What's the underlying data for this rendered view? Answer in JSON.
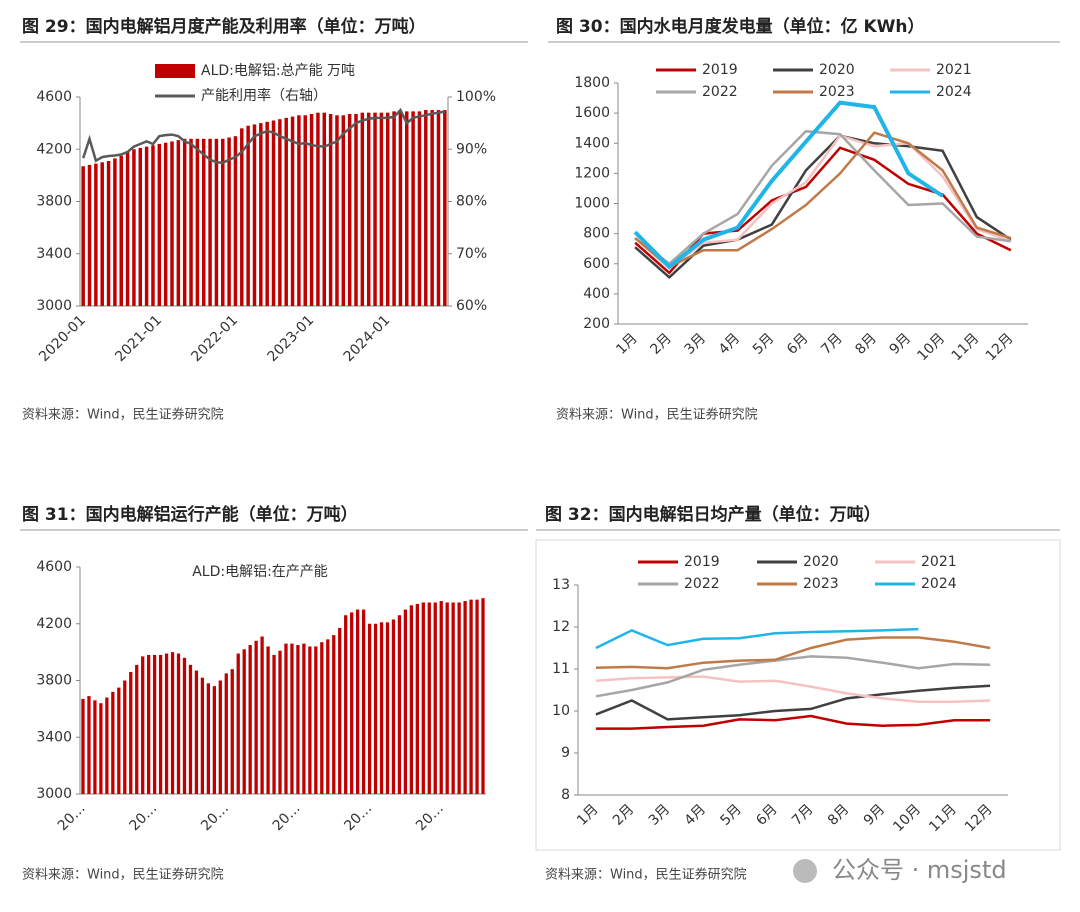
{
  "chart_data": [
    {
      "type": "combo",
      "title": "图 29：国内电解铝月度产能及利用率（单位：万吨）",
      "source": "资料来源：Wind，民生证券研究院",
      "categories": [
        "2020-01",
        null,
        null,
        null,
        null,
        null,
        null,
        null,
        null,
        null,
        null,
        null,
        "2021-01",
        null,
        null,
        null,
        null,
        null,
        null,
        null,
        null,
        null,
        null,
        null,
        "2022-01",
        null,
        null,
        null,
        null,
        null,
        null,
        null,
        null,
        null,
        null,
        null,
        "2023-01",
        null,
        null,
        null,
        null,
        null,
        null,
        null,
        null,
        null,
        null,
        null,
        "2024-01",
        null,
        null,
        null,
        null,
        null,
        null,
        null,
        null,
        null
      ],
      "series": [
        {
          "name": "ALD:电解铝:总产能 万吨",
          "type": "bar",
          "color": "#c00000",
          "values": [
            4070,
            4080,
            4090,
            4100,
            4110,
            4130,
            4150,
            4180,
            4200,
            4210,
            4220,
            4230,
            4240,
            4250,
            4260,
            4270,
            4280,
            4280,
            4280,
            4280,
            4280,
            4280,
            4280,
            4290,
            4300,
            4360,
            4380,
            4390,
            4400,
            4410,
            4420,
            4430,
            4440,
            4450,
            4460,
            4460,
            4470,
            4480,
            4480,
            4470,
            4460,
            4460,
            4470,
            4470,
            4480,
            4480,
            4480,
            4480,
            4480,
            4490,
            4490,
            4490,
            4490,
            4490,
            4500,
            4500,
            4500,
            4500
          ]
        },
        {
          "name": "产能利用率（右轴）",
          "type": "line",
          "color": "#595959",
          "axis": "y2",
          "values": [
            88.3,
            92,
            87.8,
            88.5,
            88.7,
            88.8,
            89,
            89.5,
            90.5,
            91,
            91.5,
            91,
            92.5,
            92.7,
            92.8,
            92.5,
            91.5,
            91,
            90,
            89,
            88,
            87.5,
            87.4,
            88,
            88.5,
            89.5,
            91,
            92.5,
            93,
            93.5,
            93.2,
            92.5,
            92,
            91.5,
            91,
            91.2,
            90.8,
            90.6,
            90.5,
            91,
            91.5,
            93,
            94,
            95,
            95.5,
            95.8,
            96,
            96,
            96,
            96.2,
            97.5,
            95,
            96,
            96.3,
            96.5,
            96.8,
            97,
            97.2
          ]
        }
      ],
      "ylim": [
        3000,
        4600
      ],
      "yticks": [
        3000,
        3400,
        3800,
        4200,
        4600
      ],
      "y2lim": [
        60,
        100
      ],
      "y2ticks": [
        {
          "value": 60,
          "label": "60%"
        },
        {
          "value": 70,
          "label": "70%"
        },
        {
          "value": 80,
          "label": "80%"
        },
        {
          "value": 90,
          "label": "90%"
        },
        {
          "value": 100,
          "label": "100%"
        }
      ]
    },
    {
      "type": "line",
      "title": "图 30：国内水电月度发电量（单位：亿 KWh）",
      "source": "资料来源：Wind，民生证券研究院",
      "categories": [
        "1月",
        "2月",
        "3月",
        "4月",
        "5月",
        "6月",
        "7月",
        "8月",
        "9月",
        "10月",
        "11月",
        "12月"
      ],
      "series": [
        {
          "name": "2019",
          "color": "#c00000",
          "values": [
            740,
            540,
            800,
            820,
            1020,
            1110,
            1370,
            1290,
            1130,
            1060,
            800,
            690
          ]
        },
        {
          "name": "2020",
          "color": "#404040",
          "values": [
            710,
            510,
            720,
            760,
            860,
            1220,
            1450,
            1400,
            1380,
            1350,
            910,
            760
          ]
        },
        {
          "name": "2021",
          "color": "#f4c2c2",
          "values": [
            770,
            570,
            740,
            760,
            1000,
            1140,
            1450,
            1380,
            1400,
            1180,
            830,
            750
          ]
        },
        {
          "name": "2022",
          "color": "#a6a6a6",
          "values": [
            770,
            600,
            800,
            930,
            1250,
            1480,
            1460,
            1220,
            990,
            1000,
            780,
            750
          ]
        },
        {
          "name": "2023",
          "color": "#c07a4a",
          "values": [
            770,
            580,
            690,
            690,
            830,
            990,
            1200,
            1470,
            1400,
            1220,
            840,
            770
          ]
        },
        {
          "name": "2024",
          "color": "#1fb5e9",
          "values": [
            810,
            580,
            760,
            840,
            1150,
            1410,
            1670,
            1640,
            1200,
            1050,
            null,
            null
          ]
        }
      ],
      "ylim": [
        200,
        1800
      ],
      "yticks": [
        200,
        400,
        600,
        800,
        1000,
        1200,
        1400,
        1600,
        1800
      ]
    },
    {
      "type": "bar",
      "title": "图 31：国内电解铝运行产能（单位：万吨）",
      "source": "资料来源：Wind，民生证券研究院",
      "categories": [
        "20…",
        null,
        null,
        null,
        null,
        null,
        null,
        null,
        null,
        null,
        null,
        null,
        "20…",
        null,
        null,
        null,
        null,
        null,
        null,
        null,
        null,
        null,
        null,
        null,
        "20…",
        null,
        null,
        null,
        null,
        null,
        null,
        null,
        null,
        null,
        null,
        null,
        "20…",
        null,
        null,
        null,
        null,
        null,
        null,
        null,
        null,
        null,
        null,
        null,
        "20…",
        null,
        null,
        null,
        null,
        null,
        null,
        null,
        null,
        null,
        null,
        null,
        "20…",
        null,
        null,
        null,
        null,
        null,
        null,
        null
      ],
      "series": [
        {
          "name": "ALD:电解铝:在产产能",
          "color": "#c00000",
          "values": [
            3670,
            3690,
            3660,
            3640,
            3680,
            3720,
            3750,
            3800,
            3860,
            3910,
            3970,
            3980,
            3980,
            3980,
            3990,
            4000,
            3990,
            3960,
            3910,
            3870,
            3820,
            3780,
            3760,
            3800,
            3850,
            3880,
            3990,
            4020,
            4050,
            4080,
            4110,
            4040,
            3980,
            4010,
            4060,
            4060,
            4050,
            4060,
            4040,
            4040,
            4070,
            4090,
            4120,
            4170,
            4260,
            4280,
            4300,
            4300,
            4200,
            4200,
            4210,
            4210,
            4230,
            4260,
            4300,
            4330,
            4340,
            4350,
            4350,
            4350,
            4360,
            4350,
            4350,
            4350,
            4360,
            4370,
            4370,
            4380
          ]
        }
      ],
      "ylim": [
        3000,
        4600
      ],
      "yticks": [
        3000,
        3400,
        3800,
        4200,
        4600
      ]
    },
    {
      "type": "line",
      "title": "图 32：国内电解铝日均产量（单位：万吨）",
      "source": "资料来源：Wind，民生证券研究院",
      "categories": [
        "1月",
        "2月",
        "3月",
        "4月",
        "5月",
        "6月",
        "7月",
        "8月",
        "9月",
        "10月",
        "11月",
        "12月"
      ],
      "series": [
        {
          "name": "2019",
          "color": "#c00000",
          "values": [
            9.58,
            9.58,
            9.62,
            9.65,
            9.8,
            9.78,
            9.88,
            9.7,
            9.65,
            9.67,
            9.78,
            9.78
          ]
        },
        {
          "name": "2020",
          "color": "#404040",
          "values": [
            9.92,
            10.25,
            9.8,
            9.85,
            9.9,
            10.0,
            10.05,
            10.3,
            10.4,
            10.48,
            10.55,
            10.6
          ]
        },
        {
          "name": "2021",
          "color": "#f4c2c2",
          "values": [
            10.72,
            10.78,
            10.8,
            10.82,
            10.7,
            10.72,
            10.58,
            10.42,
            10.3,
            10.22,
            10.22,
            10.25
          ]
        },
        {
          "name": "2022",
          "color": "#a6a6a6",
          "values": [
            10.35,
            10.5,
            10.68,
            10.98,
            11.1,
            11.2,
            11.3,
            11.27,
            11.15,
            11.02,
            11.12,
            11.1
          ]
        },
        {
          "name": "2023",
          "color": "#c07a4a",
          "values": [
            11.03,
            11.05,
            11.02,
            11.15,
            11.2,
            11.22,
            11.5,
            11.7,
            11.75,
            11.75,
            11.65,
            11.5
          ]
        },
        {
          "name": "2024",
          "color": "#1fb5e9",
          "values": [
            11.5,
            11.92,
            11.57,
            11.72,
            11.73,
            11.85,
            11.88,
            11.9,
            11.92,
            11.95,
            null,
            null
          ]
        }
      ],
      "ylim": [
        8,
        13
      ],
      "yticks": [
        8,
        9,
        10,
        11,
        12,
        13
      ]
    }
  ],
  "watermark": "公众号 · msjstd"
}
